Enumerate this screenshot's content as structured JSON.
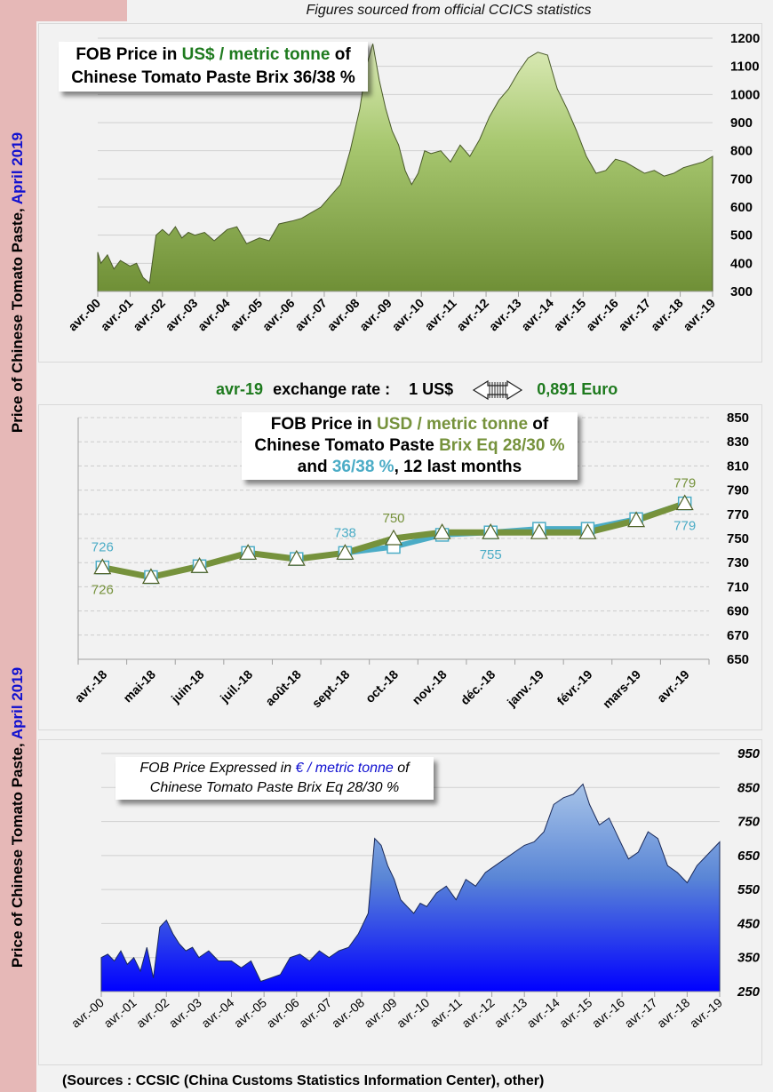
{
  "header": {
    "caption": "Figures sourced from official CCICS statistics"
  },
  "sidebar": {
    "label_main": "Price of Chinese Tomato Paste, ",
    "label_date": "April 2019"
  },
  "exchange": {
    "month": "avr-19",
    "text": "exchange rate :",
    "from": "1 US$",
    "arrow_icon": "striped-right-arrow-icon",
    "to": "0,891 Euro"
  },
  "footer": {
    "sources": "(Sources : CCSIC (China Customs Statistics Information Center), other)"
  },
  "colors": {
    "green_fill": "#8fb050",
    "blue_fill": "#1a1aff",
    "olive_line": "#76923c",
    "teal_line": "#4bacc6",
    "sidebar": "#e6b8b7"
  },
  "chart_data": [
    {
      "id": "usd_3638_long",
      "type": "area",
      "title_parts": [
        "FOB Price in ",
        "US$ / metric tonne",
        " of",
        "Chinese  Tomato Paste Brix 36/38 %"
      ],
      "xlabel": "",
      "ylabel": "",
      "ylim": [
        300,
        1200
      ],
      "yticks": [
        300,
        400,
        500,
        600,
        700,
        800,
        900,
        1000,
        1100,
        1200
      ],
      "xticks": [
        "avr.-00",
        "avr.-01",
        "avr.-02",
        "avr.-03",
        "avr.-04",
        "avr.-05",
        "avr.-06",
        "avr.-07",
        "avr.-08",
        "avr.-09",
        "avr.-10",
        "avr.-11",
        "avr.-12",
        "avr.-13",
        "avr.-14",
        "avr.-15",
        "avr.-16",
        "avr.-17",
        "avr.-18",
        "avr.-19"
      ],
      "grid": true,
      "x": [
        0,
        0.1,
        0.3,
        0.5,
        0.7,
        1.0,
        1.2,
        1.4,
        1.6,
        1.8,
        2.0,
        2.2,
        2.4,
        2.6,
        2.8,
        3.0,
        3.3,
        3.6,
        4.0,
        4.3,
        4.6,
        5.0,
        5.3,
        5.6,
        6.0,
        6.3,
        6.6,
        6.9,
        7.2,
        7.5,
        7.8,
        8.1,
        8.3,
        8.5,
        8.7,
        8.9,
        9.1,
        9.3,
        9.5,
        9.7,
        9.9,
        10.1,
        10.3,
        10.6,
        10.9,
        11.2,
        11.5,
        11.8,
        12.1,
        12.4,
        12.7,
        13.0,
        13.3,
        13.6,
        13.9,
        14.0,
        14.2,
        14.5,
        14.8,
        15.1,
        15.4,
        15.7,
        16.0,
        16.3,
        16.6,
        16.9,
        17.2,
        17.5,
        17.8,
        18.1,
        18.4,
        18.7,
        19.0
      ],
      "values": [
        440,
        400,
        430,
        380,
        410,
        390,
        400,
        350,
        330,
        500,
        520,
        500,
        530,
        490,
        510,
        500,
        510,
        480,
        520,
        530,
        470,
        490,
        480,
        540,
        550,
        560,
        580,
        600,
        640,
        680,
        800,
        950,
        1100,
        1180,
        1050,
        950,
        870,
        820,
        730,
        680,
        720,
        800,
        790,
        800,
        760,
        820,
        780,
        840,
        920,
        980,
        1020,
        1080,
        1130,
        1150,
        1140,
        1100,
        1020,
        950,
        870,
        780,
        720,
        730,
        770,
        760,
        740,
        720,
        730,
        710,
        720,
        740,
        750,
        760,
        780
      ]
    },
    {
      "id": "usd_12_months",
      "type": "line",
      "title_parts": [
        "FOB Price in ",
        "USD / metric tonne",
        " of",
        "Chinese  Tomato Paste ",
        "Brix Eq 28/30 %",
        "and ",
        "36/38 %",
        ", 12 last months"
      ],
      "ylim": [
        650,
        850
      ],
      "yticks": [
        650,
        670,
        690,
        710,
        730,
        750,
        770,
        790,
        810,
        830,
        850
      ],
      "categories": [
        "avr.-18",
        "mai-18",
        "juin-18",
        "juil.-18",
        "août-18",
        "sept.-18",
        "oct.-18",
        "nov.-18",
        "déc.-18",
        "janv.-19",
        "févr.-19",
        "mars-19",
        "avr.-19"
      ],
      "grid": true,
      "series": [
        {
          "name": "Brix Eq 28/30 %",
          "color": "#76923c",
          "marker": "triangle",
          "values": [
            726,
            718,
            727,
            738,
            733,
            738,
            750,
            755,
            755,
            755,
            755,
            765,
            779
          ]
        },
        {
          "name": "36/38 %",
          "color": "#4bacc6",
          "marker": "square",
          "values": [
            726,
            718,
            727,
            738,
            733,
            738,
            743,
            753,
            755,
            758,
            758,
            766,
            779
          ]
        }
      ],
      "data_labels": [
        {
          "series": "36/38 %",
          "index": 0,
          "text": "726",
          "position": "above"
        },
        {
          "series": "Brix Eq 28/30 %",
          "index": 0,
          "text": "726",
          "position": "below"
        },
        {
          "series": "36/38 %",
          "index": 5,
          "text": "738",
          "position": "above"
        },
        {
          "series": "Brix Eq 28/30 %",
          "index": 6,
          "text": "750",
          "position": "above"
        },
        {
          "series": "36/38 %",
          "index": 8,
          "text": "755",
          "position": "below"
        },
        {
          "series": "Brix Eq 28/30 %",
          "index": 12,
          "text": "779",
          "position": "above"
        },
        {
          "series": "36/38 %",
          "index": 12,
          "text": "779",
          "position": "below"
        }
      ]
    },
    {
      "id": "eur_2830_long",
      "type": "area",
      "title_parts": [
        "FOB Price Expressed in ",
        "€ / metric tonne",
        " of",
        "Chinese  Tomato  Paste  Brix Eq 28/30 %"
      ],
      "ylim": [
        250,
        950
      ],
      "yticks": [
        250,
        350,
        450,
        550,
        650,
        750,
        850,
        950
      ],
      "xticks": [
        "avr.-00",
        "avr.-01",
        "avr.-02",
        "avr.-03",
        "avr.-04",
        "avr.-05",
        "avr.-06",
        "avr.-07",
        "avr.-08",
        "avr.-09",
        "avr.-10",
        "avr.-11",
        "avr.-12",
        "avr.-13",
        "avr.-14",
        "avr.-15",
        "avr.-16",
        "avr.-17",
        "avr.-18",
        "avr.-19"
      ],
      "grid": true,
      "x": [
        0,
        0.2,
        0.4,
        0.6,
        0.8,
        1.0,
        1.2,
        1.4,
        1.6,
        1.8,
        2.0,
        2.2,
        2.4,
        2.6,
        2.8,
        3.0,
        3.3,
        3.6,
        4.0,
        4.3,
        4.6,
        4.9,
        5.2,
        5.5,
        5.8,
        6.1,
        6.4,
        6.7,
        7.0,
        7.3,
        7.6,
        7.9,
        8.2,
        8.4,
        8.6,
        8.8,
        9.0,
        9.2,
        9.4,
        9.6,
        9.8,
        10.0,
        10.3,
        10.6,
        10.9,
        11.2,
        11.5,
        11.8,
        12.1,
        12.4,
        12.7,
        13.0,
        13.3,
        13.6,
        13.9,
        14.2,
        14.5,
        14.8,
        15.0,
        15.3,
        15.6,
        15.9,
        16.2,
        16.5,
        16.8,
        17.1,
        17.4,
        17.7,
        18.0,
        18.3,
        18.6,
        19.0
      ],
      "values": [
        350,
        360,
        340,
        370,
        330,
        350,
        310,
        380,
        290,
        440,
        460,
        420,
        390,
        370,
        380,
        350,
        370,
        340,
        340,
        320,
        340,
        280,
        290,
        300,
        350,
        360,
        340,
        370,
        350,
        370,
        380,
        420,
        480,
        700,
        680,
        620,
        580,
        520,
        500,
        480,
        510,
        500,
        540,
        560,
        520,
        580,
        560,
        600,
        620,
        640,
        660,
        680,
        690,
        720,
        800,
        820,
        830,
        860,
        800,
        740,
        760,
        700,
        640,
        660,
        720,
        700,
        620,
        600,
        570,
        620,
        650,
        690
      ]
    }
  ]
}
